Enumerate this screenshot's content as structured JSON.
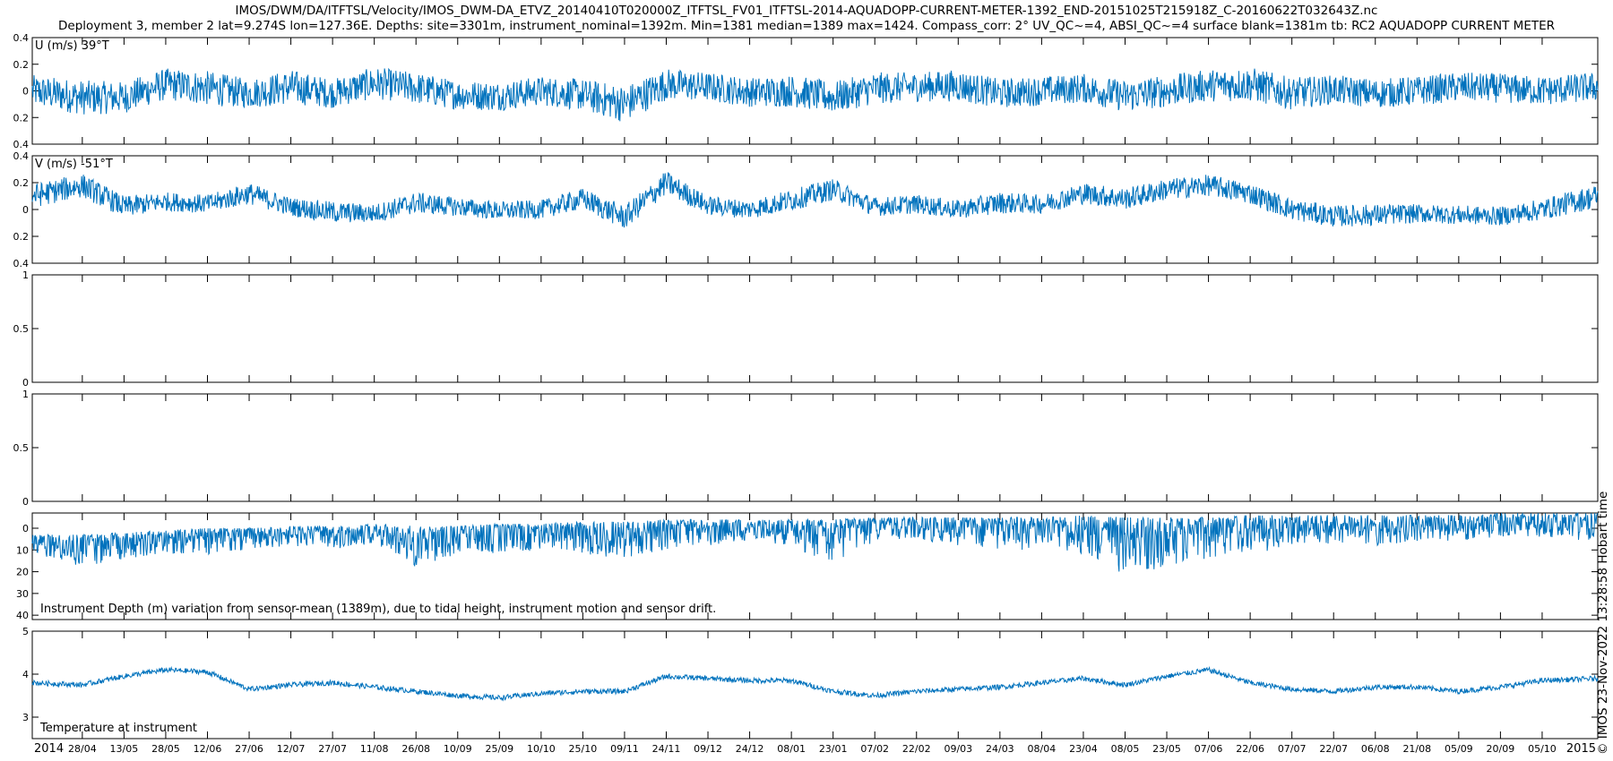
{
  "header": {
    "title_line1": "IMOS/DWM/DA/ITFTSL/Velocity/IMOS_DWM-DA_ETVZ_20140410T020000Z_ITFTSL_FV01_ITFTSL-2014-AQUADOPP-CURRENT-METER-1392_END-20151025T215918Z_C-20160622T032643Z.nc",
    "title_line2": "Deployment 3, member 2 lat=9.274S lon=127.36E. Depths: site=3301m, instrument_nominal=1392m. Min=1381 median=1389 max=1424. Compass_corr: 2° UV_QC~=4, ABSI_QC~=4 surface blank=1381m tb: RC2 AQUADOPP CURRENT METER"
  },
  "credit": "© IMOS 23-Nov-2022 13:28:58 Hobart time",
  "colors": {
    "series": "#0072bd",
    "axes": "#000000",
    "background": "#ffffff"
  },
  "chart_data": [
    {
      "id": "u",
      "type": "line",
      "label": "U (m/s) 39°T",
      "ylim": [
        -0.4,
        0.4
      ],
      "yticks": [
        0.4,
        0.2,
        0,
        -0.2,
        -0.4
      ],
      "yticklabels": [
        "0.4",
        "0.2",
        "0",
        "0.2",
        "0.4"
      ],
      "envelope": {
        "x": [
          "2014-04-10",
          "2014-04-28",
          "2014-05-13",
          "2014-05-28",
          "2014-06-12",
          "2014-06-27",
          "2014-07-12",
          "2014-07-27",
          "2014-08-11",
          "2014-08-26",
          "2014-09-10",
          "2014-09-25",
          "2014-10-10",
          "2014-10-25",
          "2014-11-09",
          "2014-11-24",
          "2014-12-09",
          "2014-12-24",
          "2015-01-08",
          "2015-01-23",
          "2015-02-07",
          "2015-02-22",
          "2015-03-09",
          "2015-03-24",
          "2015-04-08",
          "2015-04-23",
          "2015-05-08",
          "2015-05-23",
          "2015-06-07",
          "2015-06-22",
          "2015-07-07",
          "2015-07-22",
          "2015-08-06",
          "2015-08-21",
          "2015-09-05",
          "2015-09-20",
          "2015-10-05",
          "2015-10-25"
        ],
        "center": [
          0.0,
          -0.05,
          -0.05,
          0.05,
          0.02,
          -0.02,
          0.03,
          -0.02,
          0.06,
          0.02,
          -0.03,
          -0.04,
          0.0,
          -0.03,
          -0.1,
          0.05,
          0.03,
          -0.01,
          0.0,
          -0.05,
          0.02,
          0.03,
          0.04,
          -0.02,
          0.0,
          0.02,
          -0.04,
          0.0,
          0.04,
          0.05,
          -0.02,
          0.01,
          -0.02,
          0.0,
          0.03,
          0.02,
          0.0,
          0.03
        ],
        "amplitude": [
          0.12,
          0.13,
          0.12,
          0.12,
          0.13,
          0.11,
          0.13,
          0.11,
          0.12,
          0.12,
          0.11,
          0.11,
          0.11,
          0.12,
          0.14,
          0.12,
          0.11,
          0.11,
          0.12,
          0.12,
          0.12,
          0.11,
          0.12,
          0.11,
          0.11,
          0.11,
          0.12,
          0.12,
          0.12,
          0.13,
          0.12,
          0.11,
          0.11,
          0.11,
          0.11,
          0.11,
          0.11,
          0.11
        ]
      }
    },
    {
      "id": "v",
      "type": "line",
      "label": "V (m/s) -51°T",
      "ylim": [
        -0.4,
        0.4
      ],
      "yticks": [
        0.4,
        0.2,
        0,
        -0.2,
        -0.4
      ],
      "yticklabels": [
        "0.4",
        "0.2",
        "0",
        "0.2",
        "0.4"
      ],
      "envelope": {
        "x": [
          "2014-04-10",
          "2014-04-28",
          "2014-05-13",
          "2014-05-28",
          "2014-06-12",
          "2014-06-27",
          "2014-07-12",
          "2014-07-27",
          "2014-08-11",
          "2014-08-26",
          "2014-09-10",
          "2014-09-25",
          "2014-10-10",
          "2014-10-25",
          "2014-11-09",
          "2014-11-24",
          "2014-12-09",
          "2014-12-24",
          "2015-01-08",
          "2015-01-23",
          "2015-02-07",
          "2015-02-22",
          "2015-03-09",
          "2015-03-24",
          "2015-04-08",
          "2015-04-23",
          "2015-05-08",
          "2015-05-23",
          "2015-06-07",
          "2015-06-22",
          "2015-07-07",
          "2015-07-22",
          "2015-08-06",
          "2015-08-21",
          "2015-09-05",
          "2015-09-20",
          "2015-10-05",
          "2015-10-25"
        ],
        "center": [
          0.1,
          0.18,
          0.02,
          0.06,
          0.04,
          0.12,
          0.02,
          -0.02,
          -0.03,
          0.05,
          0.02,
          -0.01,
          0.0,
          0.08,
          -0.06,
          0.2,
          0.03,
          0.0,
          0.07,
          0.15,
          0.02,
          0.04,
          0.0,
          0.05,
          0.04,
          0.12,
          0.08,
          0.15,
          0.18,
          0.12,
          0.0,
          -0.05,
          -0.04,
          -0.03,
          -0.04,
          -0.05,
          0.0,
          0.1
        ],
        "amplitude": [
          0.09,
          0.09,
          0.08,
          0.07,
          0.07,
          0.08,
          0.07,
          0.08,
          0.07,
          0.08,
          0.07,
          0.07,
          0.07,
          0.08,
          0.09,
          0.09,
          0.07,
          0.07,
          0.08,
          0.08,
          0.07,
          0.07,
          0.07,
          0.08,
          0.07,
          0.08,
          0.08,
          0.08,
          0.08,
          0.08,
          0.08,
          0.08,
          0.08,
          0.07,
          0.07,
          0.07,
          0.08,
          0.09
        ]
      }
    },
    {
      "id": "empty1",
      "type": "line",
      "label": "",
      "ylim": [
        0,
        1
      ],
      "yticks": [
        1,
        0.5,
        0
      ],
      "yticklabels": [
        "1",
        "0.5",
        "0"
      ]
    },
    {
      "id": "empty2",
      "type": "line",
      "label": "",
      "ylim": [
        0,
        1
      ],
      "yticks": [
        1,
        0.5,
        0
      ],
      "yticklabels": [
        "1",
        "0.5",
        "0"
      ]
    },
    {
      "id": "depth",
      "type": "line",
      "label": "Instrument Depth (m) variation from sensor-mean (1389m), due to tidal height, instrument motion and sensor drift.",
      "ylim": [
        -42,
        7
      ],
      "yticks": [
        0,
        -10,
        -20,
        -30,
        -40
      ],
      "yticklabels": [
        "0",
        "10",
        "20",
        "30",
        "40"
      ],
      "envelope": {
        "x": [
          "2014-04-10",
          "2014-04-28",
          "2014-05-13",
          "2014-05-28",
          "2014-06-12",
          "2014-06-27",
          "2014-07-12",
          "2014-07-27",
          "2014-08-11",
          "2014-08-26",
          "2014-09-10",
          "2014-09-25",
          "2014-10-10",
          "2014-10-25",
          "2014-11-09",
          "2014-11-24",
          "2014-12-09",
          "2014-12-24",
          "2015-01-08",
          "2015-01-23",
          "2015-02-07",
          "2015-02-22",
          "2015-03-09",
          "2015-03-24",
          "2015-04-08",
          "2015-04-23",
          "2015-05-08",
          "2015-05-23",
          "2015-06-07",
          "2015-06-22",
          "2015-07-07",
          "2015-07-22",
          "2015-08-06",
          "2015-08-21",
          "2015-09-05",
          "2015-09-20",
          "2015-10-05",
          "2015-10-25"
        ],
        "top": [
          -3,
          -3,
          -2,
          -1,
          0,
          0,
          1,
          1,
          2,
          1,
          1,
          2,
          2,
          3,
          3,
          4,
          4,
          4,
          4,
          4,
          5,
          5,
          5,
          5,
          5,
          6,
          5,
          5,
          5,
          6,
          6,
          6,
          6,
          6,
          6,
          7,
          7,
          7
        ],
        "bottom": [
          -12,
          -18,
          -14,
          -12,
          -12,
          -10,
          -8,
          -10,
          -7,
          -18,
          -12,
          -12,
          -10,
          -12,
          -14,
          -10,
          -8,
          -6,
          -8,
          -18,
          -6,
          -6,
          -8,
          -10,
          -10,
          -12,
          -22,
          -18,
          -14,
          -12,
          -8,
          -8,
          -8,
          -6,
          -6,
          -4,
          -4,
          -6
        ]
      }
    },
    {
      "id": "temp",
      "type": "line",
      "label": "Temperature at instrument",
      "ylim": [
        2.5,
        5
      ],
      "yticks": [
        5,
        4,
        3
      ],
      "yticklabels": [
        "5",
        "4",
        "3"
      ],
      "envelope": {
        "x": [
          "2014-04-10",
          "2014-04-28",
          "2014-05-13",
          "2014-05-28",
          "2014-06-12",
          "2014-06-27",
          "2014-07-12",
          "2014-07-27",
          "2014-08-11",
          "2014-08-26",
          "2014-09-10",
          "2014-09-25",
          "2014-10-10",
          "2014-10-25",
          "2014-11-09",
          "2014-11-24",
          "2014-12-09",
          "2014-12-24",
          "2015-01-08",
          "2015-01-23",
          "2015-02-07",
          "2015-02-22",
          "2015-03-09",
          "2015-03-24",
          "2015-04-08",
          "2015-04-23",
          "2015-05-08",
          "2015-05-23",
          "2015-06-07",
          "2015-06-22",
          "2015-07-07",
          "2015-07-22",
          "2015-08-06",
          "2015-08-21",
          "2015-09-05",
          "2015-09-20",
          "2015-10-05",
          "2015-10-25"
        ],
        "center": [
          3.8,
          3.75,
          3.95,
          4.1,
          4.05,
          3.65,
          3.75,
          3.8,
          3.7,
          3.6,
          3.5,
          3.45,
          3.55,
          3.6,
          3.6,
          3.95,
          3.9,
          3.85,
          3.85,
          3.6,
          3.5,
          3.6,
          3.65,
          3.7,
          3.8,
          3.9,
          3.75,
          3.95,
          4.1,
          3.8,
          3.65,
          3.6,
          3.7,
          3.7,
          3.6,
          3.7,
          3.85,
          3.9
        ],
        "amplitude": [
          0.06,
          0.06,
          0.06,
          0.06,
          0.06,
          0.06,
          0.06,
          0.06,
          0.06,
          0.06,
          0.06,
          0.06,
          0.06,
          0.06,
          0.06,
          0.06,
          0.06,
          0.06,
          0.06,
          0.06,
          0.06,
          0.06,
          0.06,
          0.06,
          0.06,
          0.06,
          0.06,
          0.06,
          0.06,
          0.06,
          0.06,
          0.06,
          0.06,
          0.06,
          0.06,
          0.06,
          0.06,
          0.06
        ]
      }
    }
  ],
  "time_axis": {
    "start": "2014-04-10",
    "end": "2015-10-25",
    "tick_labels": [
      "28/04",
      "13/05",
      "28/05",
      "12/06",
      "27/06",
      "12/07",
      "27/07",
      "11/08",
      "26/08",
      "10/09",
      "25/09",
      "10/10",
      "25/10",
      "09/11",
      "24/11",
      "09/12",
      "24/12",
      "08/01",
      "23/01",
      "07/02",
      "22/02",
      "09/03",
      "24/03",
      "08/04",
      "23/04",
      "08/05",
      "23/05",
      "07/06",
      "22/06",
      "07/07",
      "22/07",
      "06/08",
      "21/08",
      "05/09",
      "20/09",
      "05/10"
    ],
    "tick_dates": [
      "2014-04-28",
      "2014-05-13",
      "2014-05-28",
      "2014-06-12",
      "2014-06-27",
      "2014-07-12",
      "2014-07-27",
      "2014-08-11",
      "2014-08-26",
      "2014-09-10",
      "2014-09-25",
      "2014-10-10",
      "2014-10-25",
      "2014-11-09",
      "2014-11-24",
      "2014-12-09",
      "2014-12-24",
      "2015-01-08",
      "2015-01-23",
      "2015-02-07",
      "2015-02-22",
      "2015-03-09",
      "2015-03-24",
      "2015-04-08",
      "2015-04-23",
      "2015-05-08",
      "2015-05-23",
      "2015-06-07",
      "2015-06-22",
      "2015-07-07",
      "2015-07-22",
      "2015-08-06",
      "2015-08-21",
      "2015-09-05",
      "2015-09-20",
      "2015-10-05"
    ],
    "year_start_label": "2014",
    "year_end_label": "2015"
  }
}
